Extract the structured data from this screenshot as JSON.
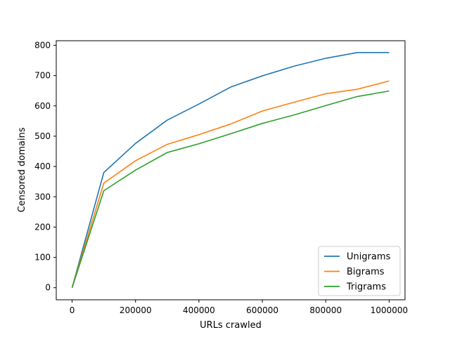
{
  "chart_data": {
    "type": "line",
    "title": "",
    "xlabel": "URLs crawled",
    "ylabel": "Censored domains",
    "xlim": [
      -50000,
      1050000
    ],
    "ylim": [
      -40,
      815
    ],
    "xticks": [
      0,
      200000,
      400000,
      600000,
      800000,
      1000000
    ],
    "xtick_labels": [
      "0",
      "200000",
      "400000",
      "600000",
      "800000",
      "1000000"
    ],
    "yticks": [
      0,
      100,
      200,
      300,
      400,
      500,
      600,
      700,
      800
    ],
    "ytick_labels": [
      "0",
      "100",
      "200",
      "300",
      "400",
      "500",
      "600",
      "700",
      "800"
    ],
    "grid": false,
    "legend_position": "lower-right",
    "x": [
      0,
      100000,
      200000,
      300000,
      400000,
      500000,
      600000,
      700000,
      800000,
      900000,
      1000000
    ],
    "series": [
      {
        "name": "Unigrams",
        "color": "#1f77b4",
        "values": [
          0,
          380,
          476,
          553,
          606,
          662,
          699,
          731,
          757,
          776,
          776
        ]
      },
      {
        "name": "Bigrams",
        "color": "#ff7f0e",
        "values": [
          0,
          345,
          419,
          473,
          505,
          540,
          583,
          612,
          640,
          655,
          682
        ]
      },
      {
        "name": "Trigrams",
        "color": "#2ca02c",
        "values": [
          0,
          320,
          388,
          446,
          475,
          508,
          542,
          570,
          601,
          631,
          649
        ]
      }
    ]
  }
}
